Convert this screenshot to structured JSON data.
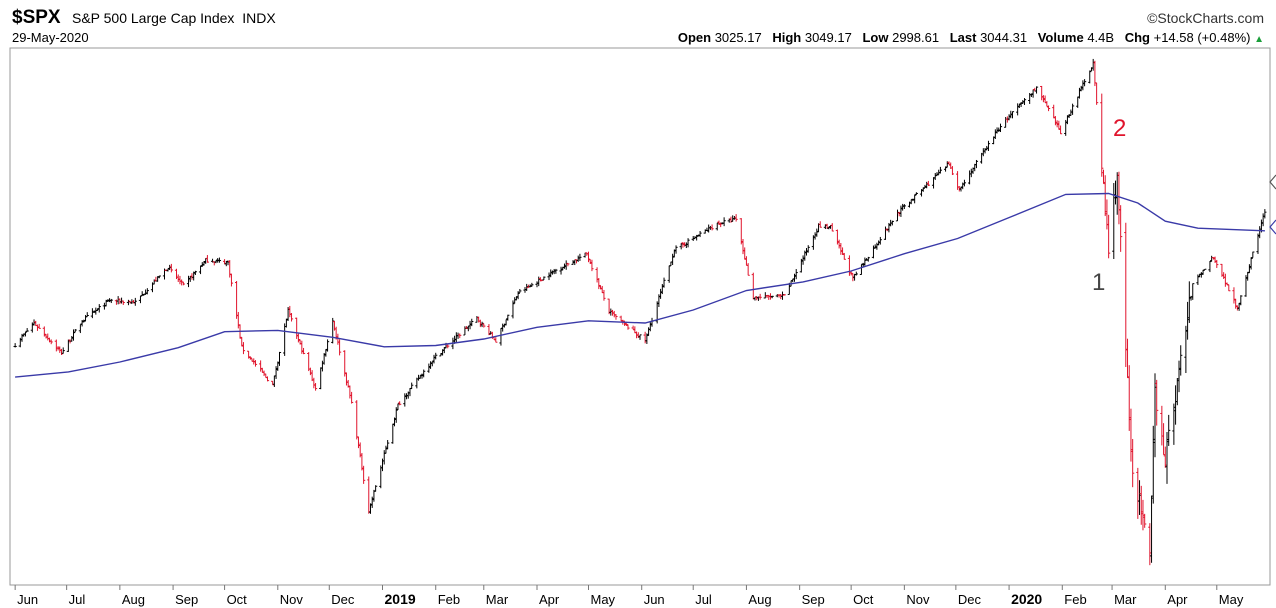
{
  "header": {
    "symbol": "$SPX",
    "name": "S&P 500 Large Cap Index",
    "exchange": "INDX",
    "date": "29-May-2020",
    "brand": "©StockCharts.com",
    "stats": {
      "open_label": "Open",
      "open": "3025.17",
      "high_label": "High",
      "high": "3049.17",
      "low_label": "Low",
      "low": "2998.61",
      "last_label": "Last",
      "last": "3044.31",
      "volume_label": "Volume",
      "volume": "4.4B",
      "chg_label": "Chg",
      "chg": "+14.58 (+0.48%)"
    }
  },
  "colors": {
    "up": "#000000",
    "down": "#e0142c",
    "ma": "#3a3aa8",
    "frame": "#999999"
  },
  "chart_data": {
    "type": "line",
    "x_ticks": [
      "Jun",
      "Jul",
      "Aug",
      "Sep",
      "Oct",
      "Nov",
      "Dec",
      "2019",
      "Feb",
      "Mar",
      "Apr",
      "May",
      "Jun",
      "Jul",
      "Aug",
      "Sep",
      "Oct",
      "Nov",
      "Dec",
      "2020",
      "Feb",
      "Mar",
      "Apr",
      "May"
    ],
    "bold_ticks": [
      "2019",
      "2020"
    ],
    "annotations": [
      {
        "text": "1",
        "color": "#444444"
      },
      {
        "text": "2",
        "color": "#e0142c"
      }
    ],
    "price": [
      {
        "x": "2018-06-01",
        "y": 2735
      },
      {
        "x": "2018-06-12",
        "y": 2785
      },
      {
        "x": "2018-06-28",
        "y": 2716
      },
      {
        "x": "2018-07-10",
        "y": 2790
      },
      {
        "x": "2018-07-26",
        "y": 2837
      },
      {
        "x": "2018-08-10",
        "y": 2833
      },
      {
        "x": "2018-08-29",
        "y": 2914
      },
      {
        "x": "2018-09-07",
        "y": 2871
      },
      {
        "x": "2018-09-20",
        "y": 2930
      },
      {
        "x": "2018-10-03",
        "y": 2925
      },
      {
        "x": "2018-10-11",
        "y": 2728
      },
      {
        "x": "2018-10-29",
        "y": 2641
      },
      {
        "x": "2018-11-07",
        "y": 2813
      },
      {
        "x": "2018-11-23",
        "y": 2633
      },
      {
        "x": "2018-12-03",
        "y": 2790
      },
      {
        "x": "2018-12-14",
        "y": 2600
      },
      {
        "x": "2018-12-24",
        "y": 2351
      },
      {
        "x": "2019-01-10",
        "y": 2596
      },
      {
        "x": "2019-01-31",
        "y": 2704
      },
      {
        "x": "2019-02-25",
        "y": 2796
      },
      {
        "x": "2019-03-08",
        "y": 2743
      },
      {
        "x": "2019-03-21",
        "y": 2854
      },
      {
        "x": "2019-04-12",
        "y": 2907
      },
      {
        "x": "2019-04-30",
        "y": 2945
      },
      {
        "x": "2019-05-13",
        "y": 2811
      },
      {
        "x": "2019-06-03",
        "y": 2744
      },
      {
        "x": "2019-06-20",
        "y": 2954
      },
      {
        "x": "2019-07-15",
        "y": 3014
      },
      {
        "x": "2019-07-26",
        "y": 3025
      },
      {
        "x": "2019-08-05",
        "y": 2844
      },
      {
        "x": "2019-08-23",
        "y": 2847
      },
      {
        "x": "2019-09-12",
        "y": 3009
      },
      {
        "x": "2019-09-19",
        "y": 3006
      },
      {
        "x": "2019-10-02",
        "y": 2887
      },
      {
        "x": "2019-10-28",
        "y": 3039
      },
      {
        "x": "2019-11-27",
        "y": 3153
      },
      {
        "x": "2019-12-03",
        "y": 3093
      },
      {
        "x": "2019-12-27",
        "y": 3240
      },
      {
        "x": "2020-01-17",
        "y": 3329
      },
      {
        "x": "2020-01-31",
        "y": 3225
      },
      {
        "x": "2020-02-19",
        "y": 3386
      },
      {
        "x": "2020-02-28",
        "y": 2954
      },
      {
        "x": "2020-03-04",
        "y": 3130
      },
      {
        "x": "2020-03-12",
        "y": 2480
      },
      {
        "x": "2020-03-23",
        "y": 2237
      },
      {
        "x": "2020-03-26",
        "y": 2630
      },
      {
        "x": "2020-04-01",
        "y": 2470
      },
      {
        "x": "2020-04-17",
        "y": 2874
      },
      {
        "x": "2020-04-29",
        "y": 2939
      },
      {
        "x": "2020-05-13",
        "y": 2820
      },
      {
        "x": "2020-05-29",
        "y": 3044
      }
    ],
    "moving_average": [
      {
        "x": "2018-06-01",
        "y": 2660
      },
      {
        "x": "2018-07-02",
        "y": 2672
      },
      {
        "x": "2018-08-01",
        "y": 2695
      },
      {
        "x": "2018-09-04",
        "y": 2728
      },
      {
        "x": "2018-10-01",
        "y": 2765
      },
      {
        "x": "2018-11-01",
        "y": 2768
      },
      {
        "x": "2018-12-03",
        "y": 2752
      },
      {
        "x": "2019-01-02",
        "y": 2730
      },
      {
        "x": "2019-02-01",
        "y": 2733
      },
      {
        "x": "2019-03-01",
        "y": 2748
      },
      {
        "x": "2019-04-01",
        "y": 2775
      },
      {
        "x": "2019-05-01",
        "y": 2790
      },
      {
        "x": "2019-06-03",
        "y": 2785
      },
      {
        "x": "2019-07-01",
        "y": 2815
      },
      {
        "x": "2019-08-01",
        "y": 2860
      },
      {
        "x": "2019-09-03",
        "y": 2880
      },
      {
        "x": "2019-10-01",
        "y": 2905
      },
      {
        "x": "2019-11-01",
        "y": 2945
      },
      {
        "x": "2019-12-02",
        "y": 2980
      },
      {
        "x": "2020-01-02",
        "y": 3030
      },
      {
        "x": "2020-02-03",
        "y": 3082
      },
      {
        "x": "2020-02-28",
        "y": 3084
      },
      {
        "x": "2020-03-16",
        "y": 3062
      },
      {
        "x": "2020-04-01",
        "y": 3020
      },
      {
        "x": "2020-04-20",
        "y": 3004
      },
      {
        "x": "2020-05-29",
        "y": 2998
      }
    ],
    "x_range": [
      "2018-05-29",
      "2020-06-01"
    ],
    "ylim": [
      2180,
      3420
    ],
    "grid": false
  }
}
